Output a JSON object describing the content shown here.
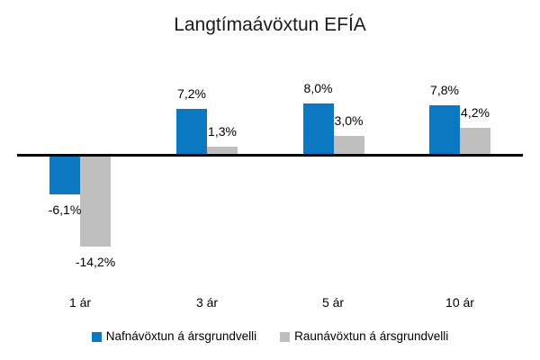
{
  "title": "Langtímaávöxtun EFÍA",
  "chart_data": {
    "type": "bar",
    "title": "Langtímaávöxtun EFÍA",
    "categories": [
      "1 ár",
      "3 ár",
      "5 ár",
      "10 ár"
    ],
    "series": [
      {
        "name": "Nafnávöxtun á ársgrundvelli",
        "color": "#0c78c1",
        "values": [
          -6.1,
          7.2,
          8.0,
          7.8
        ],
        "labels": [
          "-6,1%",
          "7,2%",
          "8,0%",
          "7,8%"
        ]
      },
      {
        "name": "Raunávöxtun á ársgrundvelli",
        "color": "#bfbfbf",
        "values": [
          -14.2,
          1.3,
          3.0,
          4.2
        ],
        "labels": [
          "-14,2%",
          "1,3%",
          "3,0%",
          "4,2%"
        ]
      }
    ],
    "xlabel": "",
    "ylabel": "",
    "value_suffix": "%",
    "decimal_separator": ",",
    "grid": false,
    "axis_line_color": "#000000",
    "legend_position": "bottom",
    "ylim": [
      -16,
      10
    ]
  }
}
